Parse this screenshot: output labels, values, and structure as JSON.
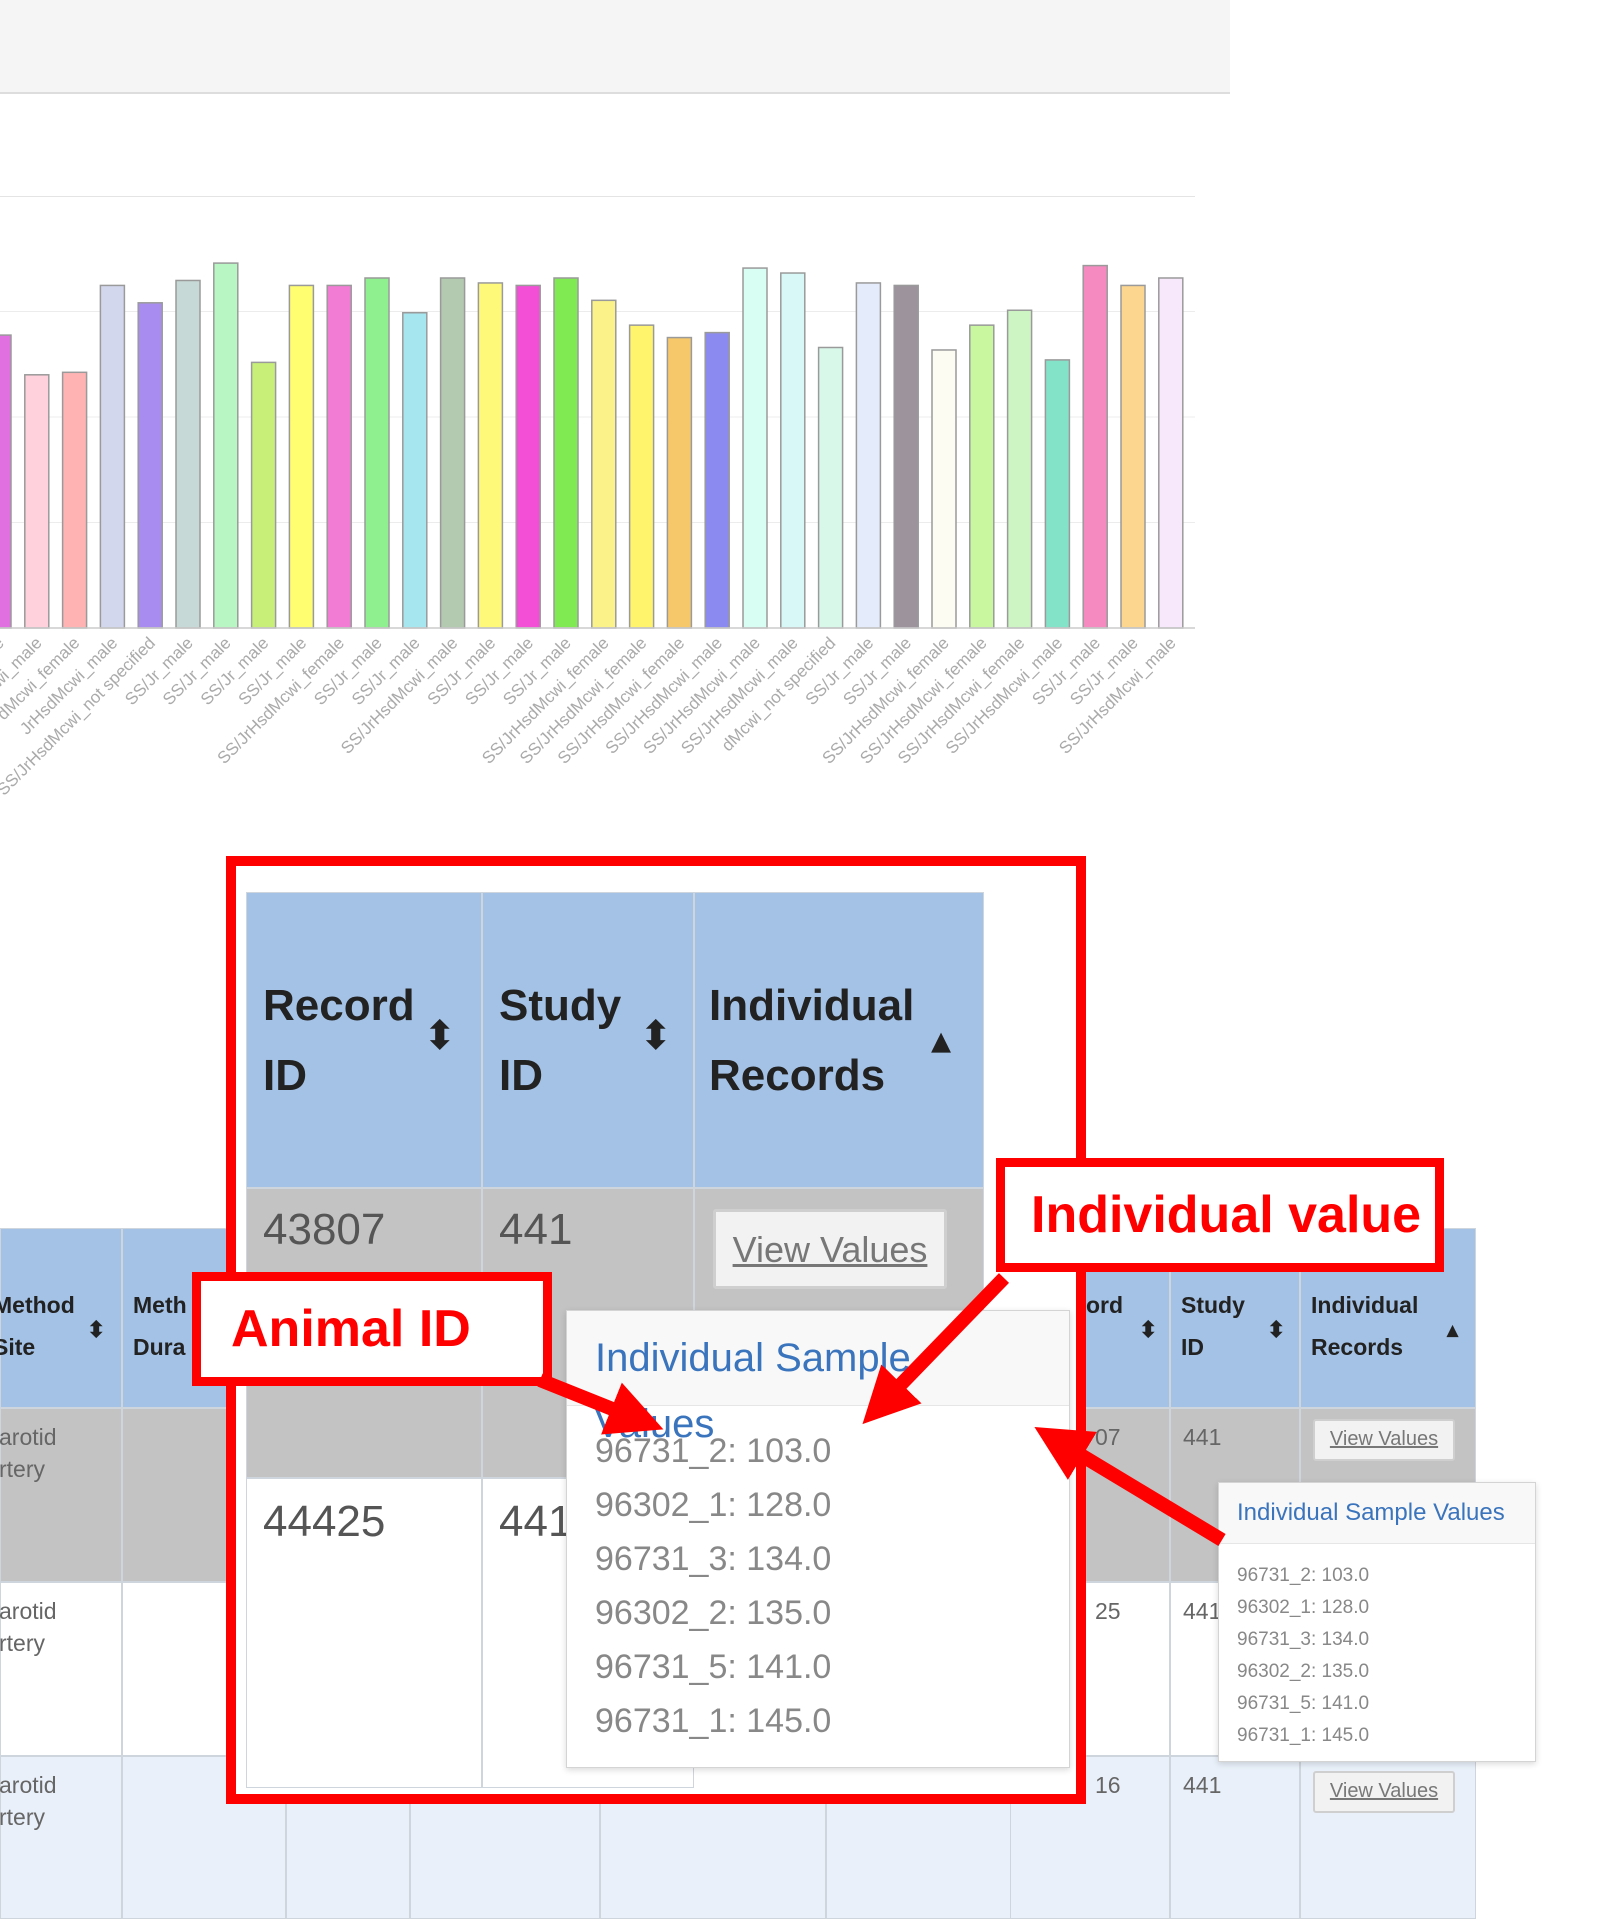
{
  "chart_data": {
    "type": "bar",
    "categories": [
      "female",
      "Mcwi_male",
      "dMcwi_female",
      "JrHsdMcwi_male",
      "SS/JrHsdMcwi_not specified",
      "SS/Jr_male",
      "SS/Jr_male",
      "SS/Jr_male",
      "SS/Jr_male",
      "SS/JrHsdMcwi_female",
      "SS/Jr_male",
      "SS/Jr_male",
      "SS/JrHsdMcwi_male",
      "SS/Jr_male",
      "SS/Jr_male",
      "SS/Jr_male",
      "SS/JrHsdMcwi_female",
      "SS/JrHsdMcwi_female",
      "SS/JrHsdMcwi_female",
      "SS/JrHsdMcwi_male",
      "SS/JrHsdMcwi_male",
      "SS/JrHsdMcwi_male",
      "dMcwi_not specified",
      "SS/Jr_male",
      "SS/Jr_male",
      "SS/JrHsdMcwi_female",
      "SS/JrHsdMcwi_female",
      "SS/JrHsdMcwi_female",
      "SS/JrHsdMcwi_male",
      "SS/Jr_male",
      "SS/Jr_male",
      "SS/JrHsdMcwi_male"
    ],
    "values": [
      118,
      102,
      103,
      138,
      131,
      140,
      147,
      107,
      138,
      138,
      141,
      127,
      141,
      139,
      138,
      141,
      132,
      122,
      117,
      119,
      145,
      143,
      113,
      139,
      138,
      112,
      122,
      128,
      108,
      146,
      138,
      141
    ],
    "colors": [
      "#e06fe0",
      "#ffd1dc",
      "#ffb3b3",
      "#d3d7ee",
      "#a98cf0",
      "#c7d9d6",
      "#b8f7c3",
      "#c8f078",
      "#fffd70",
      "#f27bd4",
      "#8ef08e",
      "#a6e6ef",
      "#b3c9b0",
      "#fff97a",
      "#f24fd6",
      "#7fea52",
      "#fbf38a",
      "#fff46b",
      "#f7c86a",
      "#8a8af0",
      "#d8fdf3",
      "#d8f8f8",
      "#d8f8ea",
      "#e4ecfb",
      "#9d939d",
      "#fcfcf2",
      "#c8f7a0",
      "#cdf4c3",
      "#82e3c8",
      "#f58ac0",
      "#fcd58e",
      "#f8e8fb"
    ],
    "ylim": [
      0,
      170
    ],
    "grid": true,
    "title": "",
    "xlabel": "",
    "ylabel": ""
  },
  "base_table": {
    "headers": {
      "method_site": "Method\nSite",
      "method_duration": "Meth\nDura",
      "record_id": "ord",
      "study_id": "Study\nID",
      "individual_records": "Individual\nRecords"
    },
    "rows": [
      {
        "method_site": "arotid\nrtery",
        "record_id": "07",
        "study_id": "441",
        "button": "View Values"
      },
      {
        "method_site": "arotid\nrtery",
        "record_id": "25",
        "study_id": "441",
        "button": ""
      },
      {
        "method_site": "arotid\nrtery",
        "record_id": "16",
        "study_id": "441",
        "button": "View Values"
      }
    ],
    "popover": {
      "title": "Individual Sample Values",
      "values": [
        "96731_2: 103.0",
        "96302_1: 128.0",
        "96731_3: 134.0",
        "96302_2: 135.0",
        "96731_5: 141.0",
        "96731_1: 145.0"
      ]
    }
  },
  "zoom": {
    "headers": {
      "record_id": "Record\nID",
      "study_id": "Study\nID",
      "individual_records": "Individual\nRecords"
    },
    "rows": [
      {
        "record_id": "43807",
        "study_id": "441",
        "button": "View Values"
      },
      {
        "record_id": "44425",
        "study_id": "441"
      }
    ],
    "popover": {
      "title": "Individual Sample Values",
      "values": [
        "96731_2: 103.0",
        "96302_1: 128.0",
        "96731_3: 134.0",
        "96302_2: 135.0",
        "96731_5: 141.0",
        "96731_1: 145.0"
      ]
    }
  },
  "annotations": {
    "animal_id": "Animal ID",
    "individual_value": "Individual value"
  }
}
